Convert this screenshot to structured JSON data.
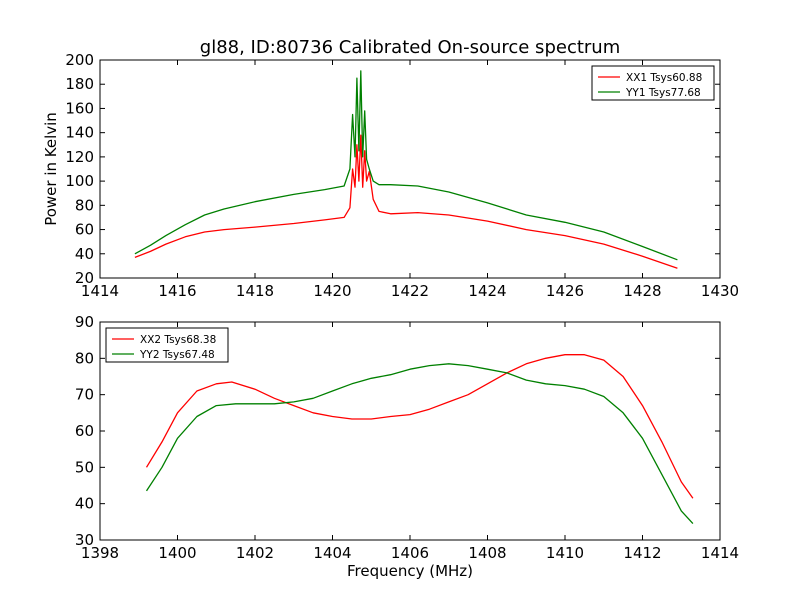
{
  "figure": {
    "title": "gl88, ID:80736 Calibrated On-source spectrum"
  },
  "chart_data": [
    {
      "type": "line",
      "title": "gl88, ID:80736 Calibrated On-source spectrum",
      "xlabel": "",
      "ylabel": "Power in Kelvin",
      "xlim": [
        1414,
        1430
      ],
      "ylim": [
        20,
        200
      ],
      "xticks": [
        1414,
        1416,
        1418,
        1420,
        1422,
        1424,
        1426,
        1428,
        1430
      ],
      "yticks": [
        20,
        40,
        60,
        80,
        100,
        120,
        140,
        160,
        180,
        200
      ],
      "grid": false,
      "legend_position": "top-right",
      "series": [
        {
          "name": "XX1 Tsys60.88",
          "color": "#ff0000",
          "x": [
            1414.9,
            1415.3,
            1415.7,
            1416.2,
            1416.7,
            1417.2,
            1418.0,
            1419.0,
            1419.8,
            1420.3,
            1420.45,
            1420.52,
            1420.58,
            1420.63,
            1420.68,
            1420.73,
            1420.78,
            1420.83,
            1420.88,
            1420.95,
            1421.05,
            1421.2,
            1421.5,
            1422.2,
            1423.0,
            1424.0,
            1425.0,
            1426.0,
            1427.0,
            1428.0,
            1428.9
          ],
          "values": [
            37,
            42,
            48,
            54,
            58,
            60,
            62,
            65,
            68,
            70,
            78,
            110,
            95,
            130,
            100,
            138,
            95,
            125,
            100,
            108,
            85,
            75,
            73,
            74,
            72,
            67,
            60,
            55,
            48,
            38,
            28
          ]
        },
        {
          "name": "YY1 Tsys77.68",
          "color": "#008000",
          "x": [
            1414.9,
            1415.3,
            1415.7,
            1416.2,
            1416.7,
            1417.2,
            1418.0,
            1419.0,
            1419.8,
            1420.3,
            1420.45,
            1420.52,
            1420.58,
            1420.63,
            1420.68,
            1420.73,
            1420.78,
            1420.83,
            1420.88,
            1420.95,
            1421.05,
            1421.2,
            1421.5,
            1422.2,
            1423.0,
            1424.0,
            1425.0,
            1426.0,
            1427.0,
            1428.0,
            1428.9
          ],
          "values": [
            40,
            47,
            55,
            64,
            72,
            77,
            83,
            89,
            93,
            96,
            110,
            155,
            120,
            185,
            125,
            191,
            120,
            158,
            118,
            110,
            100,
            97,
            97,
            96,
            91,
            82,
            72,
            66,
            58,
            46,
            35
          ]
        }
      ]
    },
    {
      "type": "line",
      "title": "",
      "xlabel": "Frequency (MHz)",
      "ylabel": "",
      "xlim": [
        1398,
        1414
      ],
      "ylim": [
        30,
        90
      ],
      "xticks": [
        1398,
        1400,
        1402,
        1404,
        1406,
        1408,
        1410,
        1412,
        1414
      ],
      "yticks": [
        30,
        40,
        50,
        60,
        70,
        80,
        90
      ],
      "grid": false,
      "legend_position": "top-left",
      "series": [
        {
          "name": "XX2 Tsys68.38",
          "color": "#ff0000",
          "x": [
            1399.2,
            1399.6,
            1400.0,
            1400.5,
            1401.0,
            1401.4,
            1402.0,
            1402.5,
            1403.0,
            1403.5,
            1404.0,
            1404.5,
            1405.0,
            1405.5,
            1406.0,
            1406.5,
            1407.0,
            1407.5,
            1408.0,
            1408.5,
            1409.0,
            1409.5,
            1410.0,
            1410.5,
            1411.0,
            1411.5,
            1412.0,
            1412.5,
            1413.0,
            1413.3
          ],
          "values": [
            50,
            57,
            65,
            71,
            73,
            73.5,
            71.5,
            69,
            67,
            65,
            64,
            63.3,
            63.3,
            64,
            64.5,
            66,
            68,
            70,
            73,
            76,
            78.5,
            80,
            81,
            81,
            79.5,
            75,
            67,
            57,
            46,
            41.5
          ]
        },
        {
          "name": "YY2 Tsys67.48",
          "color": "#008000",
          "x": [
            1399.2,
            1399.6,
            1400.0,
            1400.5,
            1401.0,
            1401.5,
            1402.0,
            1402.5,
            1403.0,
            1403.5,
            1404.0,
            1404.5,
            1405.0,
            1405.5,
            1406.0,
            1406.5,
            1407.0,
            1407.5,
            1408.0,
            1408.5,
            1409.0,
            1409.5,
            1410.0,
            1410.5,
            1411.0,
            1411.5,
            1412.0,
            1412.5,
            1413.0,
            1413.3
          ],
          "values": [
            43.5,
            50,
            58,
            64,
            67,
            67.5,
            67.5,
            67.5,
            68,
            69,
            71,
            73,
            74.5,
            75.5,
            77,
            78,
            78.5,
            78,
            77,
            76,
            74,
            73,
            72.5,
            71.5,
            69.5,
            65,
            58,
            48,
            38,
            34.5
          ]
        }
      ]
    }
  ]
}
